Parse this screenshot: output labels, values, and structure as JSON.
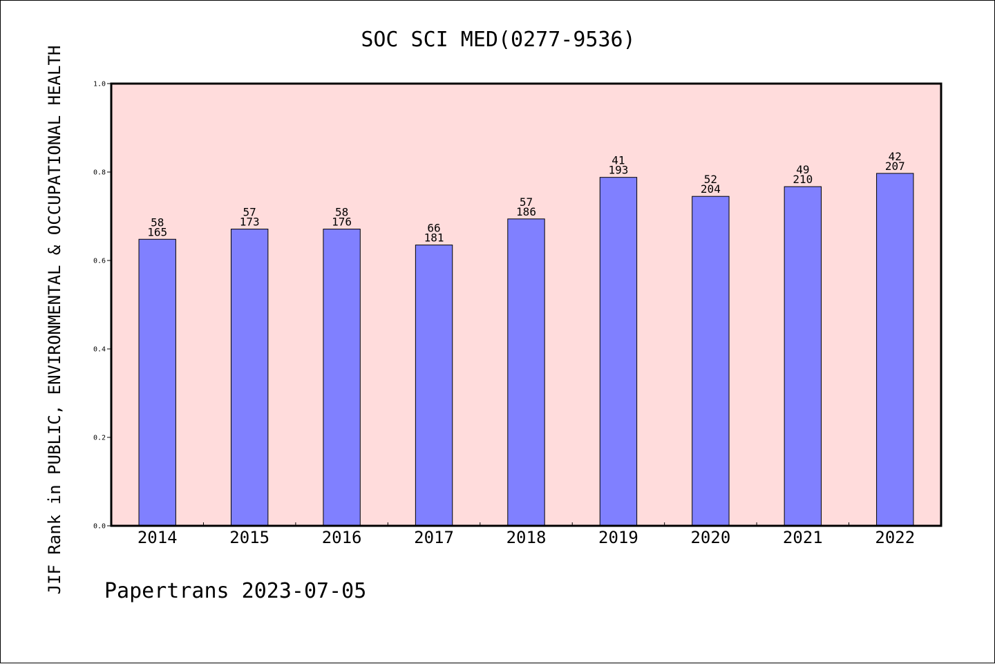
{
  "chart_data": {
    "type": "bar",
    "title": "SOC SCI MED(0277-9536)",
    "ylabel": "JIF Rank in PUBLIC, ENVIRONMENTAL & OCCUPATIONAL HEALTH",
    "xlabel": "",
    "ylim": [
      0,
      1.0
    ],
    "yticks": [
      "0.0",
      "0.2",
      "0.4",
      "0.6",
      "0.8",
      "1.0"
    ],
    "categories": [
      "2014",
      "2015",
      "2016",
      "2017",
      "2018",
      "2019",
      "2020",
      "2021",
      "2022"
    ],
    "values": [
      0.648,
      0.671,
      0.671,
      0.635,
      0.694,
      0.788,
      0.745,
      0.767,
      0.797
    ],
    "rank": [
      "58",
      "57",
      "58",
      "66",
      "57",
      "41",
      "52",
      "49",
      "42"
    ],
    "total": [
      "165",
      "173",
      "176",
      "181",
      "186",
      "193",
      "204",
      "210",
      "207"
    ],
    "bar_color": "#8080ff",
    "plot_background": "#ffdcdc",
    "grid": false,
    "legend": "none"
  },
  "footer": "Papertrans 2023-07-05"
}
